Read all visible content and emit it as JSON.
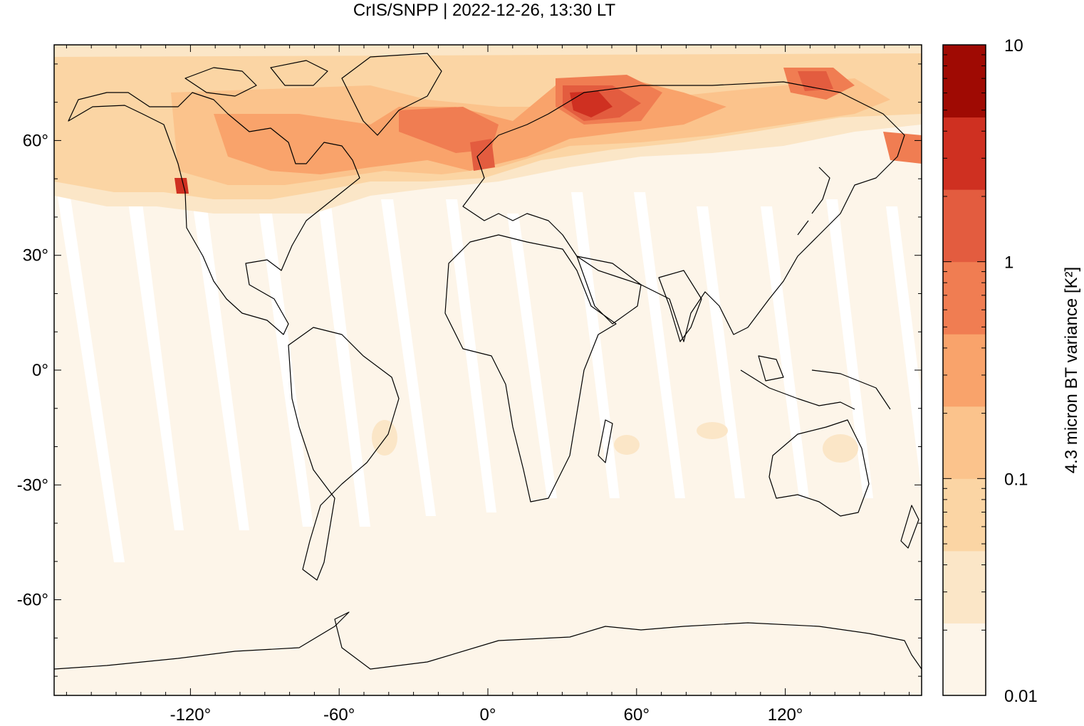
{
  "title": "CrIS/SNPP | 2022-12-26, 13:30 LT",
  "map": {
    "projection": "equirectangular",
    "background_color": "#fdf5e9",
    "x_ticks": [
      {
        "value": -120,
        "label": "-120°"
      },
      {
        "value": -60,
        "label": "-60°"
      },
      {
        "value": 0,
        "label": "0°"
      },
      {
        "value": 60,
        "label": "60°"
      },
      {
        "value": 120,
        "label": "120°"
      }
    ],
    "y_ticks": [
      {
        "value": 60,
        "label": "60°"
      },
      {
        "value": 30,
        "label": "30°"
      },
      {
        "value": 0,
        "label": "0°"
      },
      {
        "value": -30,
        "label": "-30°"
      },
      {
        "value": -60,
        "label": "-60°"
      }
    ],
    "lon_range": [
      -175,
      175
    ],
    "lat_range": [
      -85,
      85
    ]
  },
  "colorbar": {
    "label": "4.3 micron BT variance [K²]",
    "scale": "log",
    "range": [
      0.01,
      10
    ],
    "ticks": [
      {
        "value": 10,
        "label": "10"
      },
      {
        "value": 1,
        "label": "1"
      },
      {
        "value": 0.1,
        "label": "0.1"
      },
      {
        "value": 0.01,
        "label": "0.01"
      }
    ],
    "colors": [
      "#fdf5e9",
      "#fbe6c7",
      "#fbd5a4",
      "#fbc38c",
      "#f9a36b",
      "#f07d52",
      "#e35c3f",
      "#cf3021",
      "#9f0a03"
    ]
  }
}
